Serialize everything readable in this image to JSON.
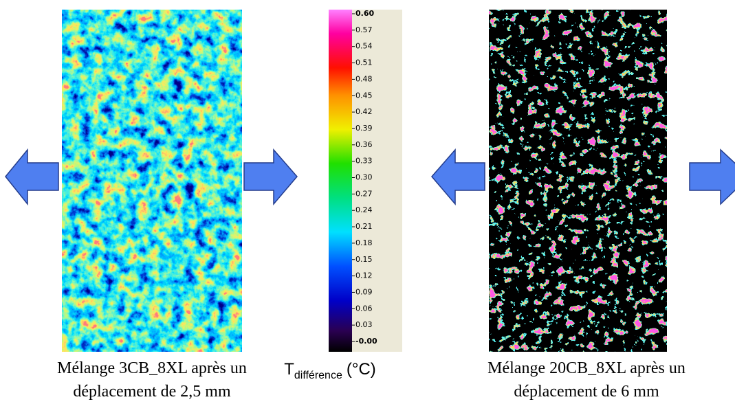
{
  "colorbar": {
    "label": "T",
    "label_subscript": "différence",
    "unit": "(°C)",
    "range": [
      0,
      0.6
    ],
    "ticks": [
      {
        "value": 0.6,
        "label": "0.60"
      },
      0.57,
      0.54,
      0.51,
      0.48,
      0.45,
      0.42,
      0.39,
      0.36,
      0.33,
      {
        "value": 0.3,
        "label": "0.30"
      },
      0.27,
      0.24,
      0.21,
      0.18,
      0.15,
      0.12,
      0.09,
      0.06,
      0.03,
      {
        "value": 0,
        "label": "-0.00"
      }
    ]
  },
  "images": [
    {
      "caption": [
        "Mélange 3CB_8XL après un",
        "déplacement de 2,5 mm"
      ]
    },
    {
      "caption": [
        "Mélange 20CB_8XL après un",
        "déplacement de 6 mm"
      ]
    }
  ]
}
